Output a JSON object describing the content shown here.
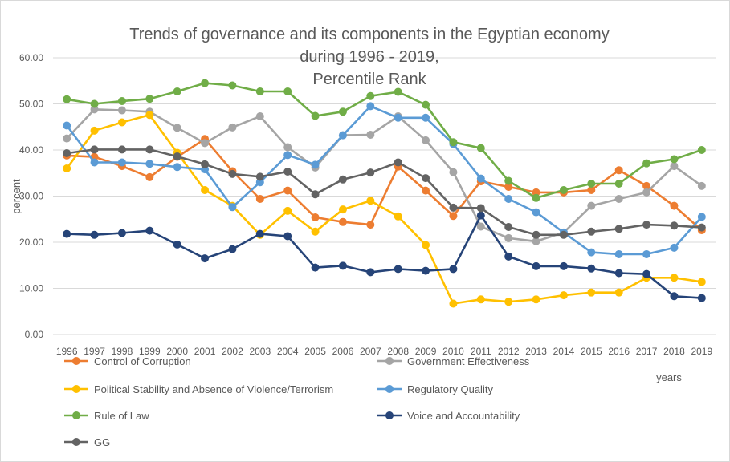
{
  "chart_data": {
    "type": "line",
    "title_lines": [
      "Trends of governance and its components in the Egyptian economy",
      "during 1996 - 2019,",
      "Percentile Rank"
    ],
    "xlabel": "years",
    "ylabel": "percent",
    "ylim": [
      0,
      60
    ],
    "yticks": [
      "0.00",
      "10.00",
      "20.00",
      "30.00",
      "40.00",
      "50.00",
      "60.00"
    ],
    "grid": true,
    "legend_position": "bottom",
    "categories": [
      "1996",
      "1997",
      "1998",
      "1999",
      "2000",
      "2001",
      "2002",
      "2003",
      "2004",
      "2005",
      "2006",
      "2007",
      "2008",
      "2009",
      "2010",
      "2011",
      "2012",
      "2013",
      "2014",
      "2015",
      "2016",
      "2017",
      "2018",
      "2019"
    ],
    "series": [
      {
        "name": "Control of Corruption",
        "color": "#ed7d31",
        "values": [
          38.8,
          38.5,
          36.5,
          34.1,
          38.5,
          42.4,
          35.4,
          29.4,
          31.2,
          25.4,
          24.4,
          23.8,
          36.4,
          31.2,
          25.7,
          33.2,
          32.0,
          30.8,
          30.8,
          31.3,
          35.6,
          32.2,
          27.9,
          22.6
        ]
      },
      {
        "name": "Government Effectiveness",
        "color": "#a5a5a5",
        "values": [
          42.5,
          48.8,
          48.6,
          48.3,
          44.8,
          41.5,
          44.9,
          47.3,
          40.6,
          36.2,
          43.2,
          43.3,
          47.3,
          42.1,
          35.2,
          23.4,
          20.9,
          20.2,
          22.1,
          27.9,
          29.4,
          30.8,
          36.5,
          32.2
        ]
      },
      {
        "name": "Political Stability and Absence of Violence/Terrorism",
        "color": "#ffc000",
        "values": [
          36.0,
          44.2,
          46.0,
          47.6,
          39.4,
          31.3,
          27.9,
          21.6,
          26.8,
          22.3,
          27.1,
          29.0,
          25.6,
          19.4,
          6.7,
          7.6,
          7.1,
          7.6,
          8.5,
          9.1,
          9.1,
          12.3,
          12.3,
          11.4
        ]
      },
      {
        "name": "Regulatory Quality",
        "color": "#5b9bd5",
        "values": [
          45.3,
          37.3,
          37.3,
          37.0,
          36.3,
          35.8,
          27.6,
          33.0,
          38.9,
          36.8,
          43.2,
          49.5,
          47.0,
          47.0,
          41.3,
          33.8,
          29.4,
          26.5,
          22.1,
          17.8,
          17.4,
          17.4,
          18.8,
          25.5
        ]
      },
      {
        "name": "Rule of Law",
        "color": "#70ad47",
        "values": [
          51.0,
          50.0,
          50.6,
          51.1,
          52.7,
          54.5,
          54.0,
          52.7,
          52.7,
          47.4,
          48.3,
          51.7,
          52.6,
          49.8,
          41.7,
          40.4,
          33.3,
          29.6,
          31.3,
          32.7,
          32.7,
          37.1,
          38.0,
          40.0
        ]
      },
      {
        "name": "Voice and Accountability",
        "color": "#264478",
        "values": [
          21.8,
          21.6,
          22.0,
          22.5,
          19.5,
          16.5,
          18.5,
          21.8,
          21.3,
          14.5,
          14.9,
          13.5,
          14.2,
          13.8,
          14.2,
          25.8,
          16.9,
          14.8,
          14.8,
          14.3,
          13.3,
          13.1,
          8.3,
          7.9
        ]
      },
      {
        "name": "GG",
        "color": "#636363",
        "values": [
          39.3,
          40.1,
          40.1,
          40.1,
          38.6,
          36.9,
          34.8,
          34.2,
          35.3,
          30.4,
          33.6,
          35.1,
          37.3,
          33.9,
          27.5,
          27.4,
          23.3,
          21.6,
          21.6,
          22.3,
          22.9,
          23.8,
          23.6,
          23.2
        ]
      }
    ]
  }
}
